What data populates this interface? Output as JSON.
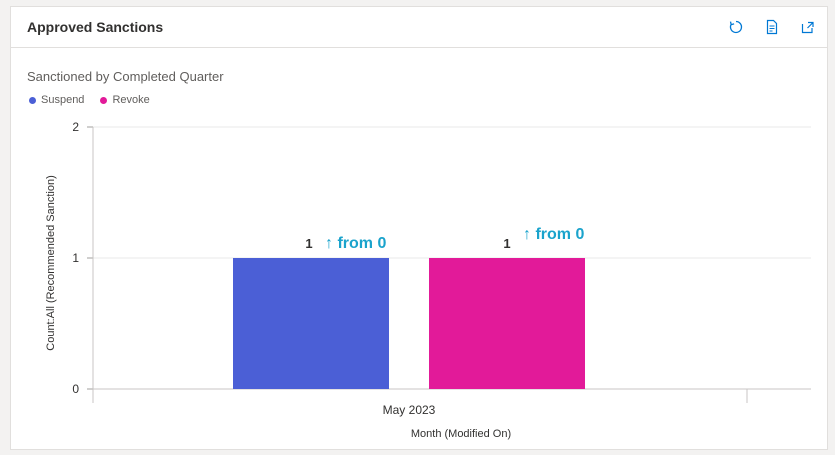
{
  "card": {
    "title": "Approved Sanctions",
    "toolbar": [
      {
        "name": "refresh-icon"
      },
      {
        "name": "view-records-icon"
      },
      {
        "name": "expand-chart-icon"
      }
    ]
  },
  "colors": {
    "suspend": "#4b5fd6",
    "revoke": "#e21a99",
    "trend": "#1aa3cc"
  },
  "chart_data": {
    "type": "bar",
    "title": "Sanctioned by Completed Quarter",
    "xlabel": "Month (Modified On)",
    "ylabel": "Count:All (Recommended Sanction)",
    "categories": [
      "May 2023"
    ],
    "series": [
      {
        "name": "Suspend",
        "values": [
          1
        ],
        "data_label": "1",
        "trend_label": "↑ from 0"
      },
      {
        "name": "Revoke",
        "values": [
          1
        ],
        "data_label": "1",
        "trend_label": "↑ from 0"
      }
    ],
    "ylim": [
      0,
      2
    ],
    "yticks": [
      "0",
      "1",
      "2"
    ],
    "grid": true,
    "legend_position": "top-left"
  }
}
